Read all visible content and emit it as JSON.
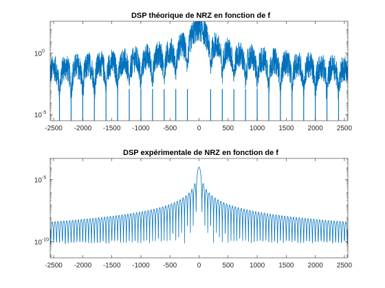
{
  "figure": {
    "background": "#ffffff",
    "axes_color": "#262626",
    "line_color": "#0072bd"
  },
  "chart_data": [
    {
      "type": "line",
      "title": "DSP théorique de NRZ en fonction de f",
      "xlabel": "",
      "ylabel": "",
      "xlim": [
        -2560,
        2560
      ],
      "yscale": "log",
      "ylim_exp": [
        -5.5,
        2.6
      ],
      "grid": false,
      "legend": "none",
      "x_ticks": [
        -2500,
        -2000,
        -1500,
        -1000,
        -500,
        0,
        500,
        1000,
        1500,
        2000,
        2500
      ],
      "x_tick_labels": [
        "-2500",
        "-2000",
        "-1500",
        "-1000",
        "-500",
        "0",
        "500",
        "1000",
        "1500",
        "2000",
        "2500"
      ],
      "y_ticks": [
        {
          "value": 1,
          "base": "10",
          "exp": "0"
        },
        {
          "value": 1e-05,
          "base": "10",
          "exp": "-5"
        }
      ],
      "series": [
        {
          "color": "#0072bd",
          "style": "noisy sinc^2 spectrum",
          "main_lobe_peak": 100,
          "main_lobe_half_width": 100,
          "lobe_period": 200,
          "null_depth": 1e-05,
          "sampled_envelope": [
            {
              "x": 0,
              "y": 100
            },
            {
              "x": -50,
              "y": 30
            },
            {
              "x": 50,
              "y": 30
            },
            {
              "x": -200,
              "y": 0.3
            },
            {
              "x": 200,
              "y": 0.3
            },
            {
              "x": -500,
              "y": 0.02
            },
            {
              "x": 500,
              "y": 0.02
            },
            {
              "x": -1000,
              "y": 0.005
            },
            {
              "x": 1000,
              "y": 0.005
            },
            {
              "x": -2500,
              "y": 0.001
            },
            {
              "x": 2500,
              "y": 0.001
            }
          ]
        }
      ]
    },
    {
      "type": "line",
      "title": "DSP expérimentale de NRZ en fonction de f",
      "xlabel": "",
      "ylabel": "",
      "xlim": [
        -2560,
        2560
      ],
      "yscale": "log",
      "ylim_exp": [
        -11.3,
        -3.3
      ],
      "grid": false,
      "legend": "none",
      "x_ticks": [
        -2500,
        -2000,
        -1500,
        -1000,
        -500,
        0,
        500,
        1000,
        1500,
        2000,
        2500
      ],
      "x_tick_labels": [
        "-2500",
        "-2000",
        "-1500",
        "-1000",
        "-500",
        "0",
        "500",
        "1000",
        "1500",
        "2000",
        "2500"
      ],
      "y_ticks": [
        {
          "value": 1e-05,
          "base": "10",
          "exp": "-5"
        },
        {
          "value": 1e-10,
          "base": "10",
          "exp": "-10"
        }
      ],
      "series": [
        {
          "color": "#0072bd",
          "style": "smooth sinc^2 spectrum",
          "main_lobe_peak": 0.0001,
          "main_lobe_half_width": 50,
          "lobe_period": 50,
          "null_depth": 1e-10,
          "sampled_envelope": [
            {
              "x": 0,
              "y": 0.0001
            },
            {
              "x": -75,
              "y": 3e-06
            },
            {
              "x": 75,
              "y": 3e-06
            },
            {
              "x": -500,
              "y": 1e-07
            },
            {
              "x": 500,
              "y": 1e-07
            },
            {
              "x": -1000,
              "y": 4e-08
            },
            {
              "x": 1000,
              "y": 4e-08
            },
            {
              "x": -2500,
              "y": 8e-09
            },
            {
              "x": 2500,
              "y": 8e-09
            }
          ]
        }
      ]
    }
  ]
}
